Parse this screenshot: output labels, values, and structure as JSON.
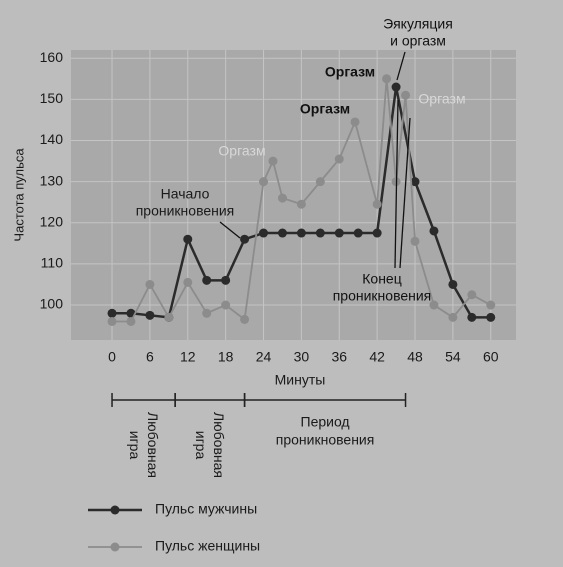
{
  "chart_data": {
    "type": "line",
    "y_label": "Частота пульса",
    "x_label": "Минуты",
    "xlim": [
      -6.5,
      64
    ],
    "ylim": [
      91.5,
      162
    ],
    "xticks": [
      0,
      6,
      12,
      18,
      24,
      30,
      36,
      42,
      48,
      54,
      60
    ],
    "yticks": [
      100,
      110,
      120,
      130,
      140,
      150,
      160
    ],
    "grid": true,
    "series": [
      {
        "name": "Пульс мужчины",
        "color": "#2b2b2b",
        "x": [
          0,
          3,
          6,
          9,
          12,
          15,
          18,
          21,
          24,
          27,
          30,
          33,
          36,
          39,
          42,
          45,
          48,
          51,
          54,
          57,
          60
        ],
        "values": [
          98,
          98,
          97.5,
          97,
          116,
          106,
          106,
          116,
          117.5,
          117.5,
          117.5,
          117.5,
          117.5,
          117.5,
          117.5,
          153,
          130,
          118,
          105,
          97,
          97
        ]
      },
      {
        "name": "Пульс женщины",
        "color": "#8c8c8c",
        "x": [
          0,
          3,
          6,
          9,
          12,
          15,
          18,
          21,
          24,
          25.5,
          27,
          30,
          33,
          36,
          38.5,
          42,
          43.5,
          45,
          46.5,
          48,
          51,
          54,
          57,
          60
        ],
        "values": [
          96,
          96,
          105,
          97,
          105.5,
          98,
          100,
          96.5,
          130,
          135,
          126,
          124.5,
          130,
          135.5,
          144.5,
          124.5,
          155,
          130,
          151,
          115.5,
          100,
          97,
          102.5,
          100
        ]
      }
    ],
    "annotations": [
      {
        "lines": [
          "Оргазм"
        ]
      },
      {
        "lines": [
          "Начало",
          "проникновения"
        ]
      },
      {
        "lines": [
          "Оргазм"
        ]
      },
      {
        "lines": [
          "Оргазм"
        ]
      },
      {
        "lines": [
          "Эякуляция",
          "и оргазм"
        ]
      },
      {
        "lines": [
          "Оргазм"
        ]
      },
      {
        "lines": [
          "Конец",
          "проникновения"
        ]
      }
    ],
    "phases": [
      {
        "lines": [
          "Любовная",
          "игра"
        ],
        "start": 0,
        "end": 10
      },
      {
        "lines": [
          "Любовная",
          "игра"
        ],
        "start": 10,
        "end": 21
      },
      {
        "lines": [
          "Период",
          "проникновения"
        ],
        "start": 21,
        "end": 46.5
      }
    ]
  }
}
